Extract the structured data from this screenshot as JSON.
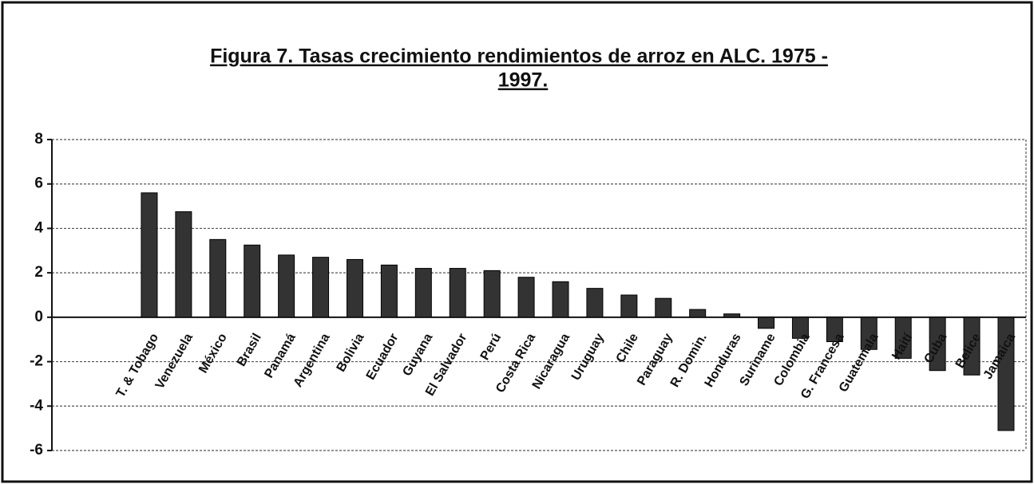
{
  "chart_data": {
    "type": "bar",
    "title": "Figura 7. Tasas crecimiento rendimientos de arroz en ALC. 1975 -",
    "subtitle": "1997.",
    "categories": [
      "T. & Tobago",
      "Venezuela",
      "México",
      "Brasil",
      "Panamá",
      "Argentina",
      "Bolivia",
      "Ecuador",
      "Guyana",
      "El Salvador",
      "Perú",
      "Costa Rica",
      "Nicaragua",
      "Uruguay",
      "Chile",
      "Paraguay",
      "R. Domin.",
      "Honduras",
      "Suriname",
      "Colombia",
      "G. Francesa",
      "Guatemala",
      "Haití",
      "Cuba",
      "Belice",
      "Jamaica"
    ],
    "values": [
      5.6,
      4.75,
      3.5,
      3.25,
      2.8,
      2.7,
      2.6,
      2.35,
      2.2,
      2.2,
      2.1,
      1.8,
      1.6,
      1.3,
      1.0,
      0.85,
      0.35,
      0.15,
      -0.5,
      -0.95,
      -1.1,
      -1.45,
      -1.85,
      -2.4,
      -2.6,
      -5.1
    ],
    "color": "#333333",
    "ylim": [
      -6,
      8
    ],
    "yticks": [
      -6,
      -4,
      -2,
      0,
      2,
      4,
      6,
      8
    ],
    "grid": true
  }
}
